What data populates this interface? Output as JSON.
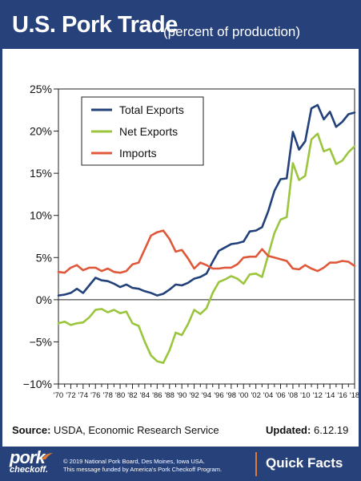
{
  "header": {
    "title": "U.S. Pork Trade",
    "subtitle": "(percent of production)"
  },
  "chart_data": {
    "type": "line",
    "title": "U.S. Pork Trade",
    "subtitle": "(percent of production)",
    "xlabel": "",
    "ylabel": "",
    "xlim": [
      1970,
      2018
    ],
    "ylim": [
      -10,
      25
    ],
    "y_ticks": [
      -10,
      -5,
      0,
      5,
      10,
      15,
      20,
      25
    ],
    "y_tick_labels": [
      "−10%",
      "−5%",
      "0%",
      "5%",
      "10%",
      "15%",
      "20%",
      "25%"
    ],
    "x_tick_labels": [
      "'70",
      "'72",
      "'74",
      "'76",
      "'78",
      "'80",
      "'82",
      "'84",
      "'86",
      "'88",
      "'90",
      "'92",
      "'94",
      "'96",
      "'98",
      "'00",
      "'02",
      "'04",
      "'06",
      "'08",
      "'10",
      "'12",
      "'14",
      "'16",
      "'18"
    ],
    "x": [
      1970,
      1971,
      1972,
      1973,
      1974,
      1975,
      1976,
      1977,
      1978,
      1979,
      1980,
      1981,
      1982,
      1983,
      1984,
      1985,
      1986,
      1987,
      1988,
      1989,
      1990,
      1991,
      1992,
      1993,
      1994,
      1995,
      1996,
      1997,
      1998,
      1999,
      2000,
      2001,
      2002,
      2003,
      2004,
      2005,
      2006,
      2007,
      2008,
      2009,
      2010,
      2011,
      2012,
      2013,
      2014,
      2015,
      2016,
      2017,
      2018
    ],
    "grid": false,
    "legend_position": "top-left",
    "series": [
      {
        "name": "Total Exports",
        "color": "#22407a",
        "values": [
          0.5,
          0.6,
          0.8,
          1.3,
          0.8,
          1.7,
          2.6,
          2.3,
          2.2,
          1.9,
          1.5,
          1.8,
          1.4,
          1.3,
          1.0,
          0.8,
          0.5,
          0.7,
          1.2,
          1.8,
          1.7,
          2.0,
          2.5,
          2.7,
          3.1,
          4.5,
          5.8,
          6.2,
          6.6,
          6.7,
          6.9,
          8.1,
          8.2,
          8.6,
          10.5,
          12.9,
          14.3,
          14.4,
          19.9,
          17.8,
          18.8,
          22.7,
          23.1,
          21.4,
          22.3,
          20.5,
          21.1,
          22.0,
          22.2
        ]
      },
      {
        "name": "Net Exports",
        "color": "#9bc53d",
        "values": [
          -2.8,
          -2.6,
          -3.0,
          -2.8,
          -2.7,
          -2.1,
          -1.2,
          -1.1,
          -1.5,
          -1.2,
          -1.6,
          -1.4,
          -2.8,
          -3.1,
          -5.0,
          -6.6,
          -7.3,
          -7.5,
          -6.0,
          -3.9,
          -4.2,
          -2.9,
          -1.2,
          -1.7,
          -1.0,
          0.8,
          2.1,
          2.4,
          2.8,
          2.5,
          1.9,
          3.0,
          3.1,
          2.7,
          5.3,
          7.9,
          9.5,
          9.8,
          16.2,
          14.2,
          14.7,
          19.0,
          19.7,
          17.6,
          17.9,
          16.1,
          16.5,
          17.5,
          18.2
        ]
      },
      {
        "name": "Imports",
        "color": "#e0583a",
        "values": [
          3.3,
          3.2,
          3.8,
          4.1,
          3.5,
          3.8,
          3.8,
          3.4,
          3.7,
          3.3,
          3.2,
          3.4,
          4.2,
          4.4,
          6.0,
          7.6,
          8.0,
          8.2,
          7.2,
          5.7,
          5.9,
          4.9,
          3.7,
          4.4,
          4.1,
          3.7,
          3.7,
          3.8,
          3.8,
          4.2,
          5.0,
          5.1,
          5.1,
          6.0,
          5.2,
          5.0,
          4.8,
          4.6,
          3.7,
          3.6,
          4.1,
          3.7,
          3.4,
          3.8,
          4.4,
          4.4,
          4.6,
          4.5,
          4.0
        ]
      }
    ]
  },
  "footer": {
    "source_label": "Source:",
    "source_text": "USDA, Economic Research Service",
    "updated_label": "Updated:",
    "updated_text": "6.12.19",
    "logo_line1": "pork",
    "logo_line2": "checkoff.",
    "copyright_line1": "© 2019 National Pork Board, Des Moines, Iowa USA.",
    "copyright_line2": "This message funded by America's Pork Checkoff Program.",
    "quick_facts": "Quick Facts"
  },
  "colors": {
    "brand_navy": "#27417a",
    "accent_orange": "#e07a32"
  }
}
